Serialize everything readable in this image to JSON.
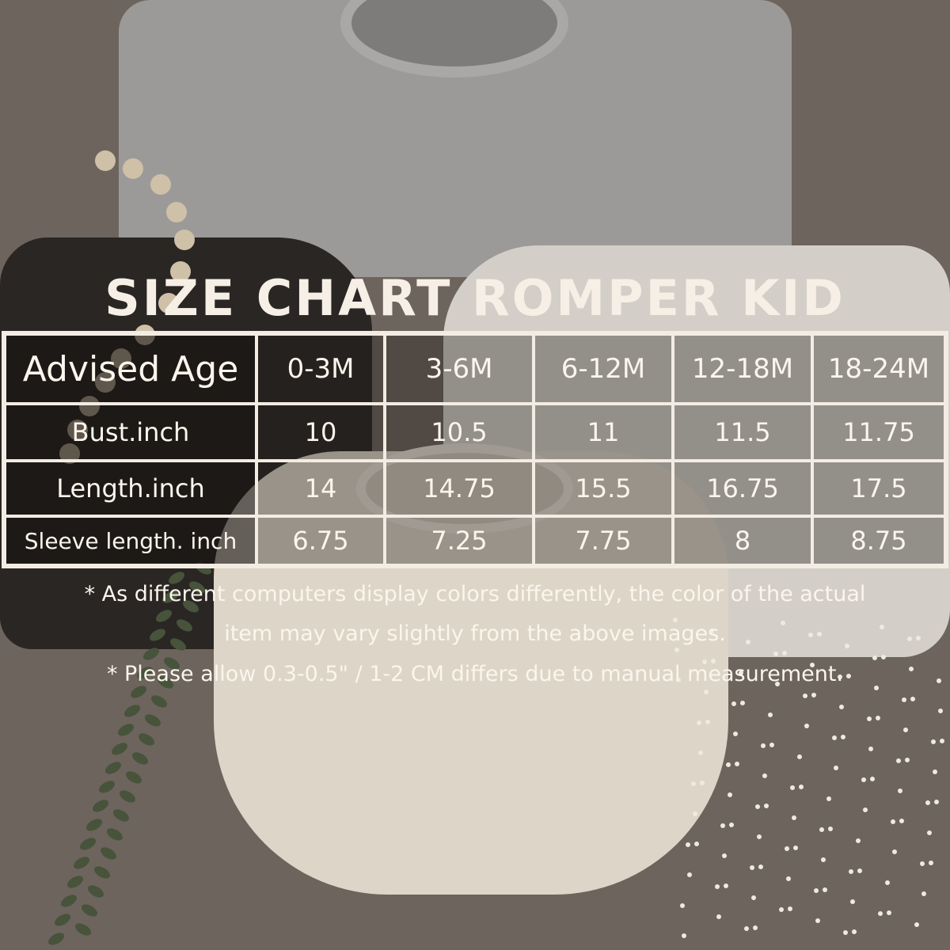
{
  "title": "SIZE CHART ROMPER KID",
  "table": {
    "header": [
      "Advised Age",
      "0-3M",
      "3-6M",
      "6-12M",
      "12-18M",
      "18-24M"
    ],
    "rows": [
      {
        "label": "Bust.inch",
        "values": [
          "10",
          "10.5",
          "11",
          "11.5",
          "11.75"
        ]
      },
      {
        "label": "Length.inch",
        "values": [
          "14",
          "14.75",
          "15.5",
          "16.75",
          "17.5"
        ]
      },
      {
        "label": "Sleeve length. inch",
        "values": [
          "6.75",
          "7.25",
          "7.75",
          "8",
          "8.75"
        ]
      }
    ]
  },
  "notes": [
    "* As different computers display colors differently, the color of the actual",
    "item may vary slightly from the above images.",
    "* Please allow 0.3-0.5\" / 1-2 CM differs due to manual measurement."
  ],
  "colors": {
    "text": "#fbf5ec",
    "border": "#f3ece3",
    "background": "#6d645d"
  }
}
